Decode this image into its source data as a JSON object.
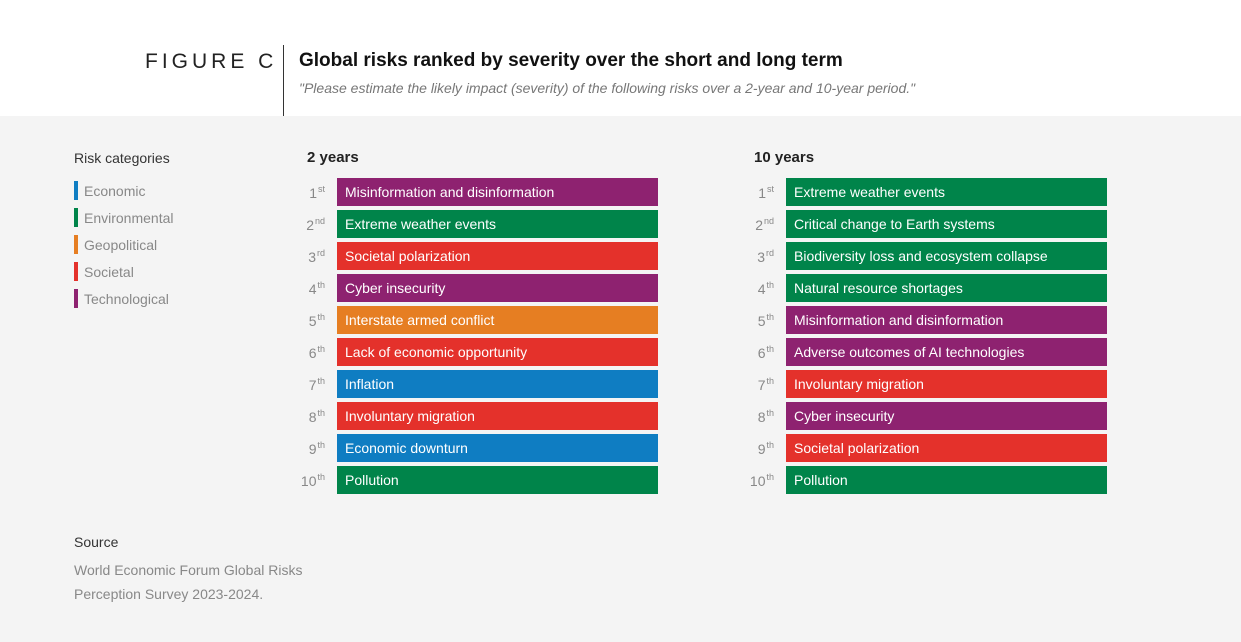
{
  "figure_label": "FIGURE C",
  "title": "Global risks ranked by severity over the short and long term",
  "subtitle": "\"Please estimate the likely impact (severity) of the following risks over a 2-year and 10-year period.\"",
  "legend": {
    "title": "Risk categories",
    "items": [
      {
        "label": "Economic",
        "color": "#0f7dc2"
      },
      {
        "label": "Environmental",
        "color": "#00844a"
      },
      {
        "label": "Geopolitical",
        "color": "#e67e22"
      },
      {
        "label": "Societal",
        "color": "#e4312b"
      },
      {
        "label": "Technological",
        "color": "#8e2270"
      }
    ]
  },
  "source": {
    "title": "Source",
    "lines": [
      "World Economic Forum Global Risks",
      "Perception Survey 2023-2024."
    ]
  },
  "chart_data": {
    "type": "table",
    "columns": [
      {
        "heading": "2 years",
        "rows": [
          {
            "rank": "1",
            "suffix": "st",
            "risk": "Misinformation and disinformation",
            "category": "Technological"
          },
          {
            "rank": "2",
            "suffix": "nd",
            "risk": "Extreme weather events",
            "category": "Environmental"
          },
          {
            "rank": "3",
            "suffix": "rd",
            "risk": "Societal polarization",
            "category": "Societal"
          },
          {
            "rank": "4",
            "suffix": "th",
            "risk": "Cyber insecurity",
            "category": "Technological"
          },
          {
            "rank": "5",
            "suffix": "th",
            "risk": "Interstate armed conflict",
            "category": "Geopolitical"
          },
          {
            "rank": "6",
            "suffix": "th",
            "risk": "Lack of economic opportunity",
            "category": "Societal"
          },
          {
            "rank": "7",
            "suffix": "th",
            "risk": "Inflation",
            "category": "Economic"
          },
          {
            "rank": "8",
            "suffix": "th",
            "risk": "Involuntary migration",
            "category": "Societal"
          },
          {
            "rank": "9",
            "suffix": "th",
            "risk": "Economic downturn",
            "category": "Economic"
          },
          {
            "rank": "10",
            "suffix": "th",
            "risk": "Pollution",
            "category": "Environmental"
          }
        ]
      },
      {
        "heading": "10 years",
        "rows": [
          {
            "rank": "1",
            "suffix": "st",
            "risk": "Extreme weather events",
            "category": "Environmental"
          },
          {
            "rank": "2",
            "suffix": "nd",
            "risk": "Critical change to Earth systems",
            "category": "Environmental"
          },
          {
            "rank": "3",
            "suffix": "rd",
            "risk": "Biodiversity loss and ecosystem collapse",
            "category": "Environmental"
          },
          {
            "rank": "4",
            "suffix": "th",
            "risk": "Natural resource shortages",
            "category": "Environmental"
          },
          {
            "rank": "5",
            "suffix": "th",
            "risk": "Misinformation and disinformation",
            "category": "Technological"
          },
          {
            "rank": "6",
            "suffix": "th",
            "risk": "Adverse outcomes of AI technologies",
            "category": "Technological"
          },
          {
            "rank": "7",
            "suffix": "th",
            "risk": "Involuntary migration",
            "category": "Societal"
          },
          {
            "rank": "8",
            "suffix": "th",
            "risk": "Cyber insecurity",
            "category": "Technological"
          },
          {
            "rank": "9",
            "suffix": "th",
            "risk": "Societal polarization",
            "category": "Societal"
          },
          {
            "rank": "10",
            "suffix": "th",
            "risk": "Pollution",
            "category": "Environmental"
          }
        ]
      }
    ]
  }
}
